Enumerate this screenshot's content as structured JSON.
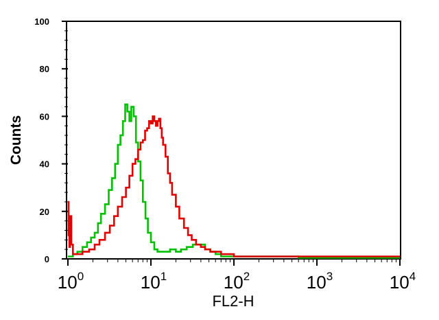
{
  "chart_data": {
    "type": "line",
    "title": "",
    "xlabel": "FL2-H",
    "ylabel": "Counts",
    "x_scale": "log10",
    "xlim": [
      1,
      10000
    ],
    "ylim": [
      0,
      100
    ],
    "y_ticks": [
      "0",
      "20",
      "40",
      "60",
      "80",
      "100"
    ],
    "x_ticks": [
      {
        "base": "10",
        "exp": "0"
      },
      {
        "base": "10",
        "exp": "1"
      },
      {
        "base": "10",
        "exp": "2"
      },
      {
        "base": "10",
        "exp": "3"
      },
      {
        "base": "10",
        "exp": "4"
      }
    ],
    "grid": false,
    "series": [
      {
        "color": "#00c000",
        "x": [
          1.0,
          1.15,
          1.3,
          1.5,
          1.7,
          1.9,
          2.1,
          2.3,
          2.5,
          2.8,
          3.1,
          3.4,
          3.7,
          4.0,
          4.3,
          4.6,
          4.9,
          5.2,
          5.5,
          5.8,
          6.2,
          6.6,
          7.0,
          7.5,
          8.0,
          8.6,
          9.2,
          10,
          11,
          12,
          13,
          15,
          17,
          20,
          23,
          27,
          32,
          38,
          45,
          52,
          60,
          70,
          80,
          100,
          130,
          170,
          220,
          300,
          400,
          600,
          1000,
          2000,
          5000,
          10000
        ],
        "y": [
          1,
          2,
          3,
          5,
          7,
          9,
          11,
          15,
          19,
          23,
          29,
          34,
          40,
          48,
          52,
          58,
          65,
          62,
          58,
          64,
          60,
          49,
          41,
          33,
          24,
          17,
          11,
          7,
          4,
          3,
          3,
          3,
          4,
          3,
          4,
          5,
          6,
          6,
          4,
          3,
          2,
          1,
          1,
          1,
          1,
          1,
          1,
          1,
          1,
          0.5,
          0.5,
          0.5,
          0.5,
          0.5
        ]
      },
      {
        "color": "#e00000",
        "x": [
          1.0,
          1.02,
          1.04,
          1.06,
          1.1,
          1.15,
          1.3,
          1.5,
          1.8,
          2.1,
          2.4,
          2.8,
          3.2,
          3.6,
          4.0,
          4.5,
          5.0,
          5.5,
          6.0,
          6.5,
          7.0,
          7.5,
          8.0,
          8.5,
          9.0,
          9.5,
          10,
          10.5,
          11,
          11.5,
          12,
          12.5,
          13,
          13.5,
          14,
          15,
          16,
          17,
          18,
          20,
          22,
          25,
          28,
          31,
          35,
          40,
          45,
          52,
          60,
          70,
          85,
          100,
          130,
          180,
          250,
          350,
          500,
          800,
          1500,
          3000,
          6000,
          10000
        ],
        "y": [
          24,
          10,
          5,
          18,
          6,
          2,
          2,
          3,
          4,
          6,
          8,
          11,
          14,
          18,
          22,
          26,
          30,
          35,
          40,
          42,
          46,
          49,
          50,
          54,
          55,
          58,
          57,
          60,
          58,
          56,
          58,
          59,
          55,
          51,
          48,
          43,
          36,
          32,
          27,
          22,
          17,
          13,
          10,
          8,
          6,
          5,
          4,
          3,
          3,
          2,
          2,
          1,
          1,
          1,
          1,
          1,
          1,
          1,
          1,
          1,
          1,
          1
        ]
      }
    ]
  }
}
